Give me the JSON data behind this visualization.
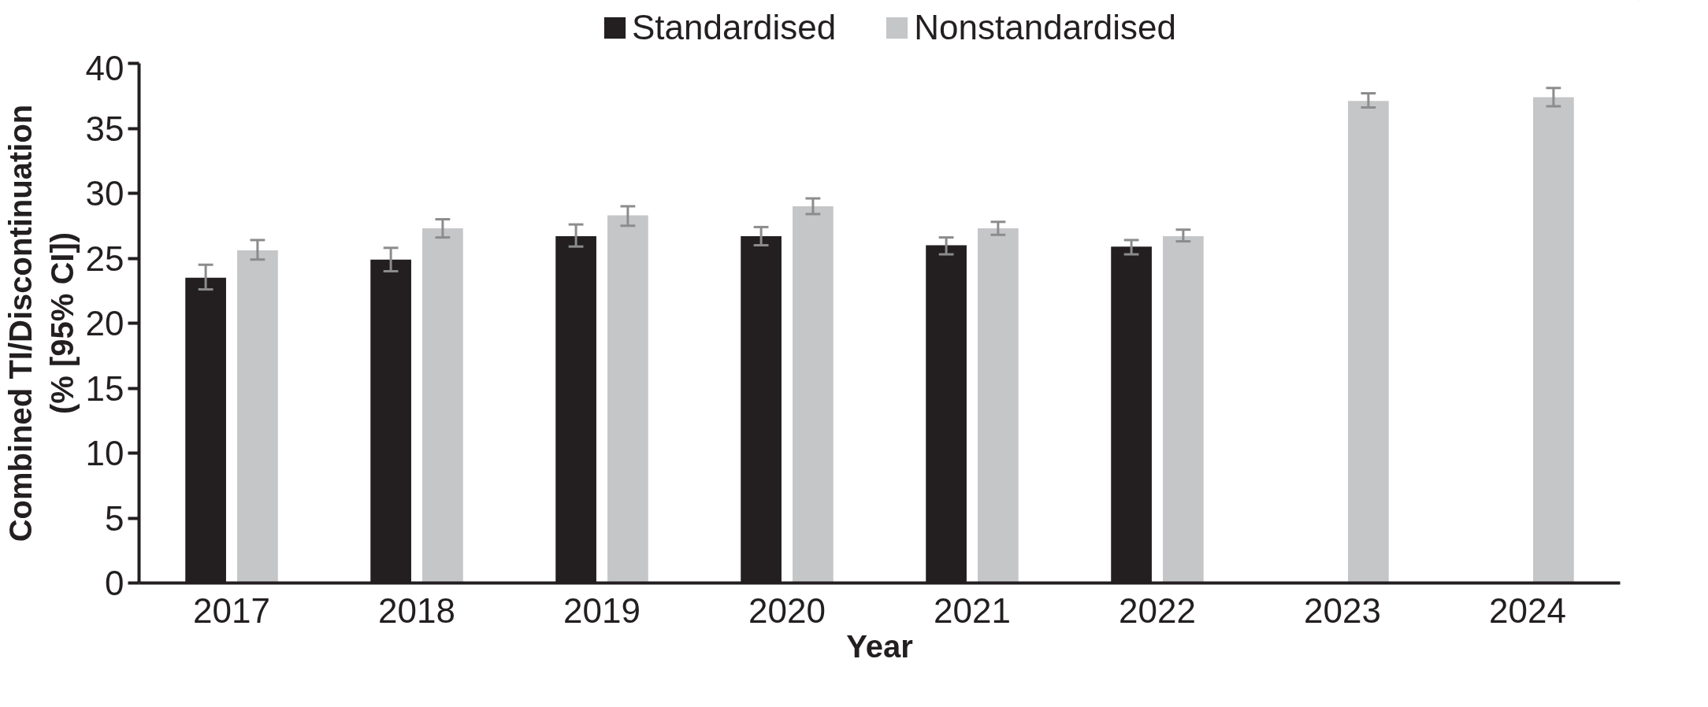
{
  "chart_data": {
    "type": "bar",
    "xlabel": "Year",
    "ylabel": "Combined TI/Discontinuation\n(% [95% CI])",
    "categories": [
      "2017",
      "2018",
      "2019",
      "2020",
      "2021",
      "2022",
      "2023",
      "2024"
    ],
    "series": [
      {
        "name": "Standardised",
        "color": "#231f20",
        "values": [
          23.5,
          24.9,
          26.7,
          26.7,
          26.0,
          25.9,
          null,
          null
        ],
        "errors": [
          [
            22.6,
            24.5
          ],
          [
            24.0,
            25.8
          ],
          [
            25.9,
            27.6
          ],
          [
            26.0,
            27.4
          ],
          [
            25.3,
            26.6
          ],
          [
            25.3,
            26.4
          ],
          null,
          null
        ]
      },
      {
        "name": "Nonstandardised",
        "color": "#c5c6c8",
        "values": [
          25.6,
          27.3,
          28.3,
          29.0,
          27.3,
          26.7,
          37.1,
          37.4
        ],
        "errors": [
          [
            24.9,
            26.4
          ],
          [
            26.6,
            28.0
          ],
          [
            27.5,
            29.0
          ],
          [
            28.4,
            29.6
          ],
          [
            26.8,
            27.8
          ],
          [
            26.3,
            27.2
          ],
          [
            36.6,
            37.7
          ],
          [
            36.7,
            38.1
          ]
        ]
      }
    ],
    "ylim": [
      0,
      40
    ],
    "yticks": [
      0,
      5,
      10,
      15,
      20,
      25,
      30,
      35,
      40
    ],
    "grid": false,
    "legend": "top"
  }
}
